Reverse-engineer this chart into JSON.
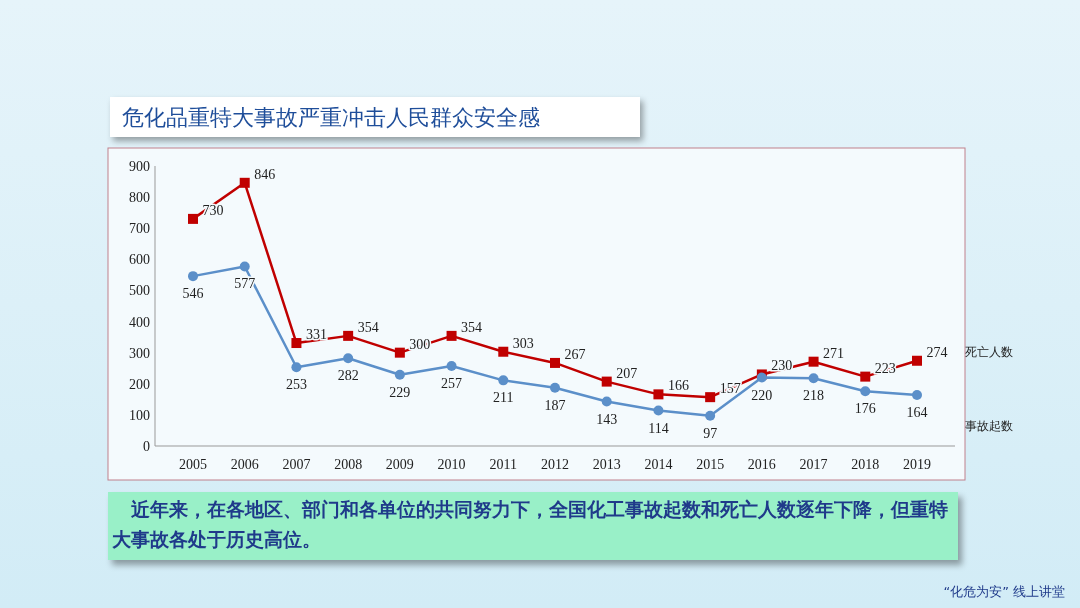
{
  "chart_data": {
    "type": "line",
    "title": "危化品重特大事故严重冲击人民群众安全感",
    "categories": [
      "2005",
      "2006",
      "2007",
      "2008",
      "2009",
      "2010",
      "2011",
      "2012",
      "2013",
      "2014",
      "2015",
      "2016",
      "2017",
      "2018",
      "2019"
    ],
    "series": [
      {
        "name": "死亡人数",
        "color": "#c00000",
        "marker": "square",
        "values": [
          730,
          846,
          331,
          354,
          300,
          354,
          303,
          267,
          207,
          166,
          157,
          230,
          271,
          223,
          274
        ]
      },
      {
        "name": "事故起数",
        "color": "#5b8fc9",
        "marker": "circle",
        "values": [
          546,
          577,
          253,
          282,
          229,
          257,
          211,
          187,
          143,
          114,
          97,
          220,
          218,
          176,
          164
        ]
      }
    ],
    "ylim": [
      0,
      900
    ],
    "yticks": [
      0,
      100,
      200,
      300,
      400,
      500,
      600,
      700,
      800,
      900
    ],
    "grid": false,
    "data_labels": true,
    "legend": "right",
    "annotations": [
      "近年来，在各地区、部门和各单位的共同努力下，全国化工事故起数和死亡人数逐年下降，但重特大事故各处于历史高位。",
      "“化危为安” 线上讲堂"
    ]
  }
}
